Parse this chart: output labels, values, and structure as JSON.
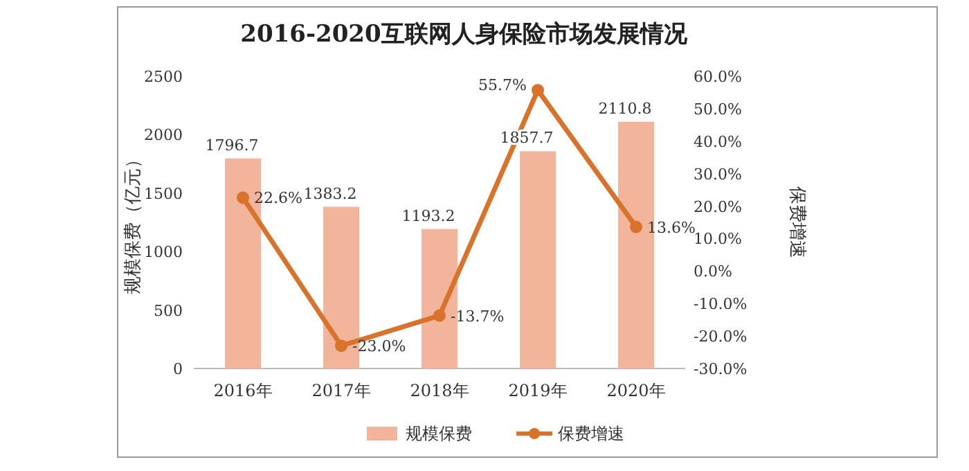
{
  "chart_data": {
    "type": "bar",
    "title": "2016-2020互联网人身保险市场发展情况",
    "ylabel": "规模保费（亿元）",
    "y2label": "保费增速",
    "categories": [
      "2016年",
      "2017年",
      "2018年",
      "2019年",
      "2020年"
    ],
    "series": [
      {
        "name": "规模保费",
        "color": "#f2b49b",
        "values": [
          1796.7,
          1383.2,
          1193.2,
          1857.7,
          2110.8
        ],
        "data_labels": true
      },
      {
        "name": "保费增速",
        "type": "line",
        "axis": "y2",
        "color": "#d9732b",
        "marker": "circle",
        "values": [
          22.6,
          -23.0,
          -13.7,
          55.7,
          13.6
        ],
        "value_labels": [
          "22.6%",
          "-23.0%",
          "-13.7%",
          "55.7%",
          "13.6%"
        ]
      }
    ],
    "ylim": [
      0,
      2500
    ],
    "yticks": [
      0,
      500,
      1000,
      1500,
      2000,
      2500
    ],
    "y2lim": [
      -30,
      60
    ],
    "y2ticks": [
      {
        "value": -30,
        "label": "-30.0%"
      },
      {
        "value": -20,
        "label": "-20.0%"
      },
      {
        "value": -10,
        "label": "-10.0%"
      },
      {
        "value": 0,
        "label": "0.0%"
      },
      {
        "value": 10,
        "label": "10.0%"
      },
      {
        "value": 20,
        "label": "20.0%"
      },
      {
        "value": 30,
        "label": "30.0%"
      },
      {
        "value": 40,
        "label": "40.0%"
      },
      {
        "value": 50,
        "label": "50.0%"
      },
      {
        "value": 60,
        "label": "60.0%"
      }
    ],
    "legend": "bottom"
  }
}
